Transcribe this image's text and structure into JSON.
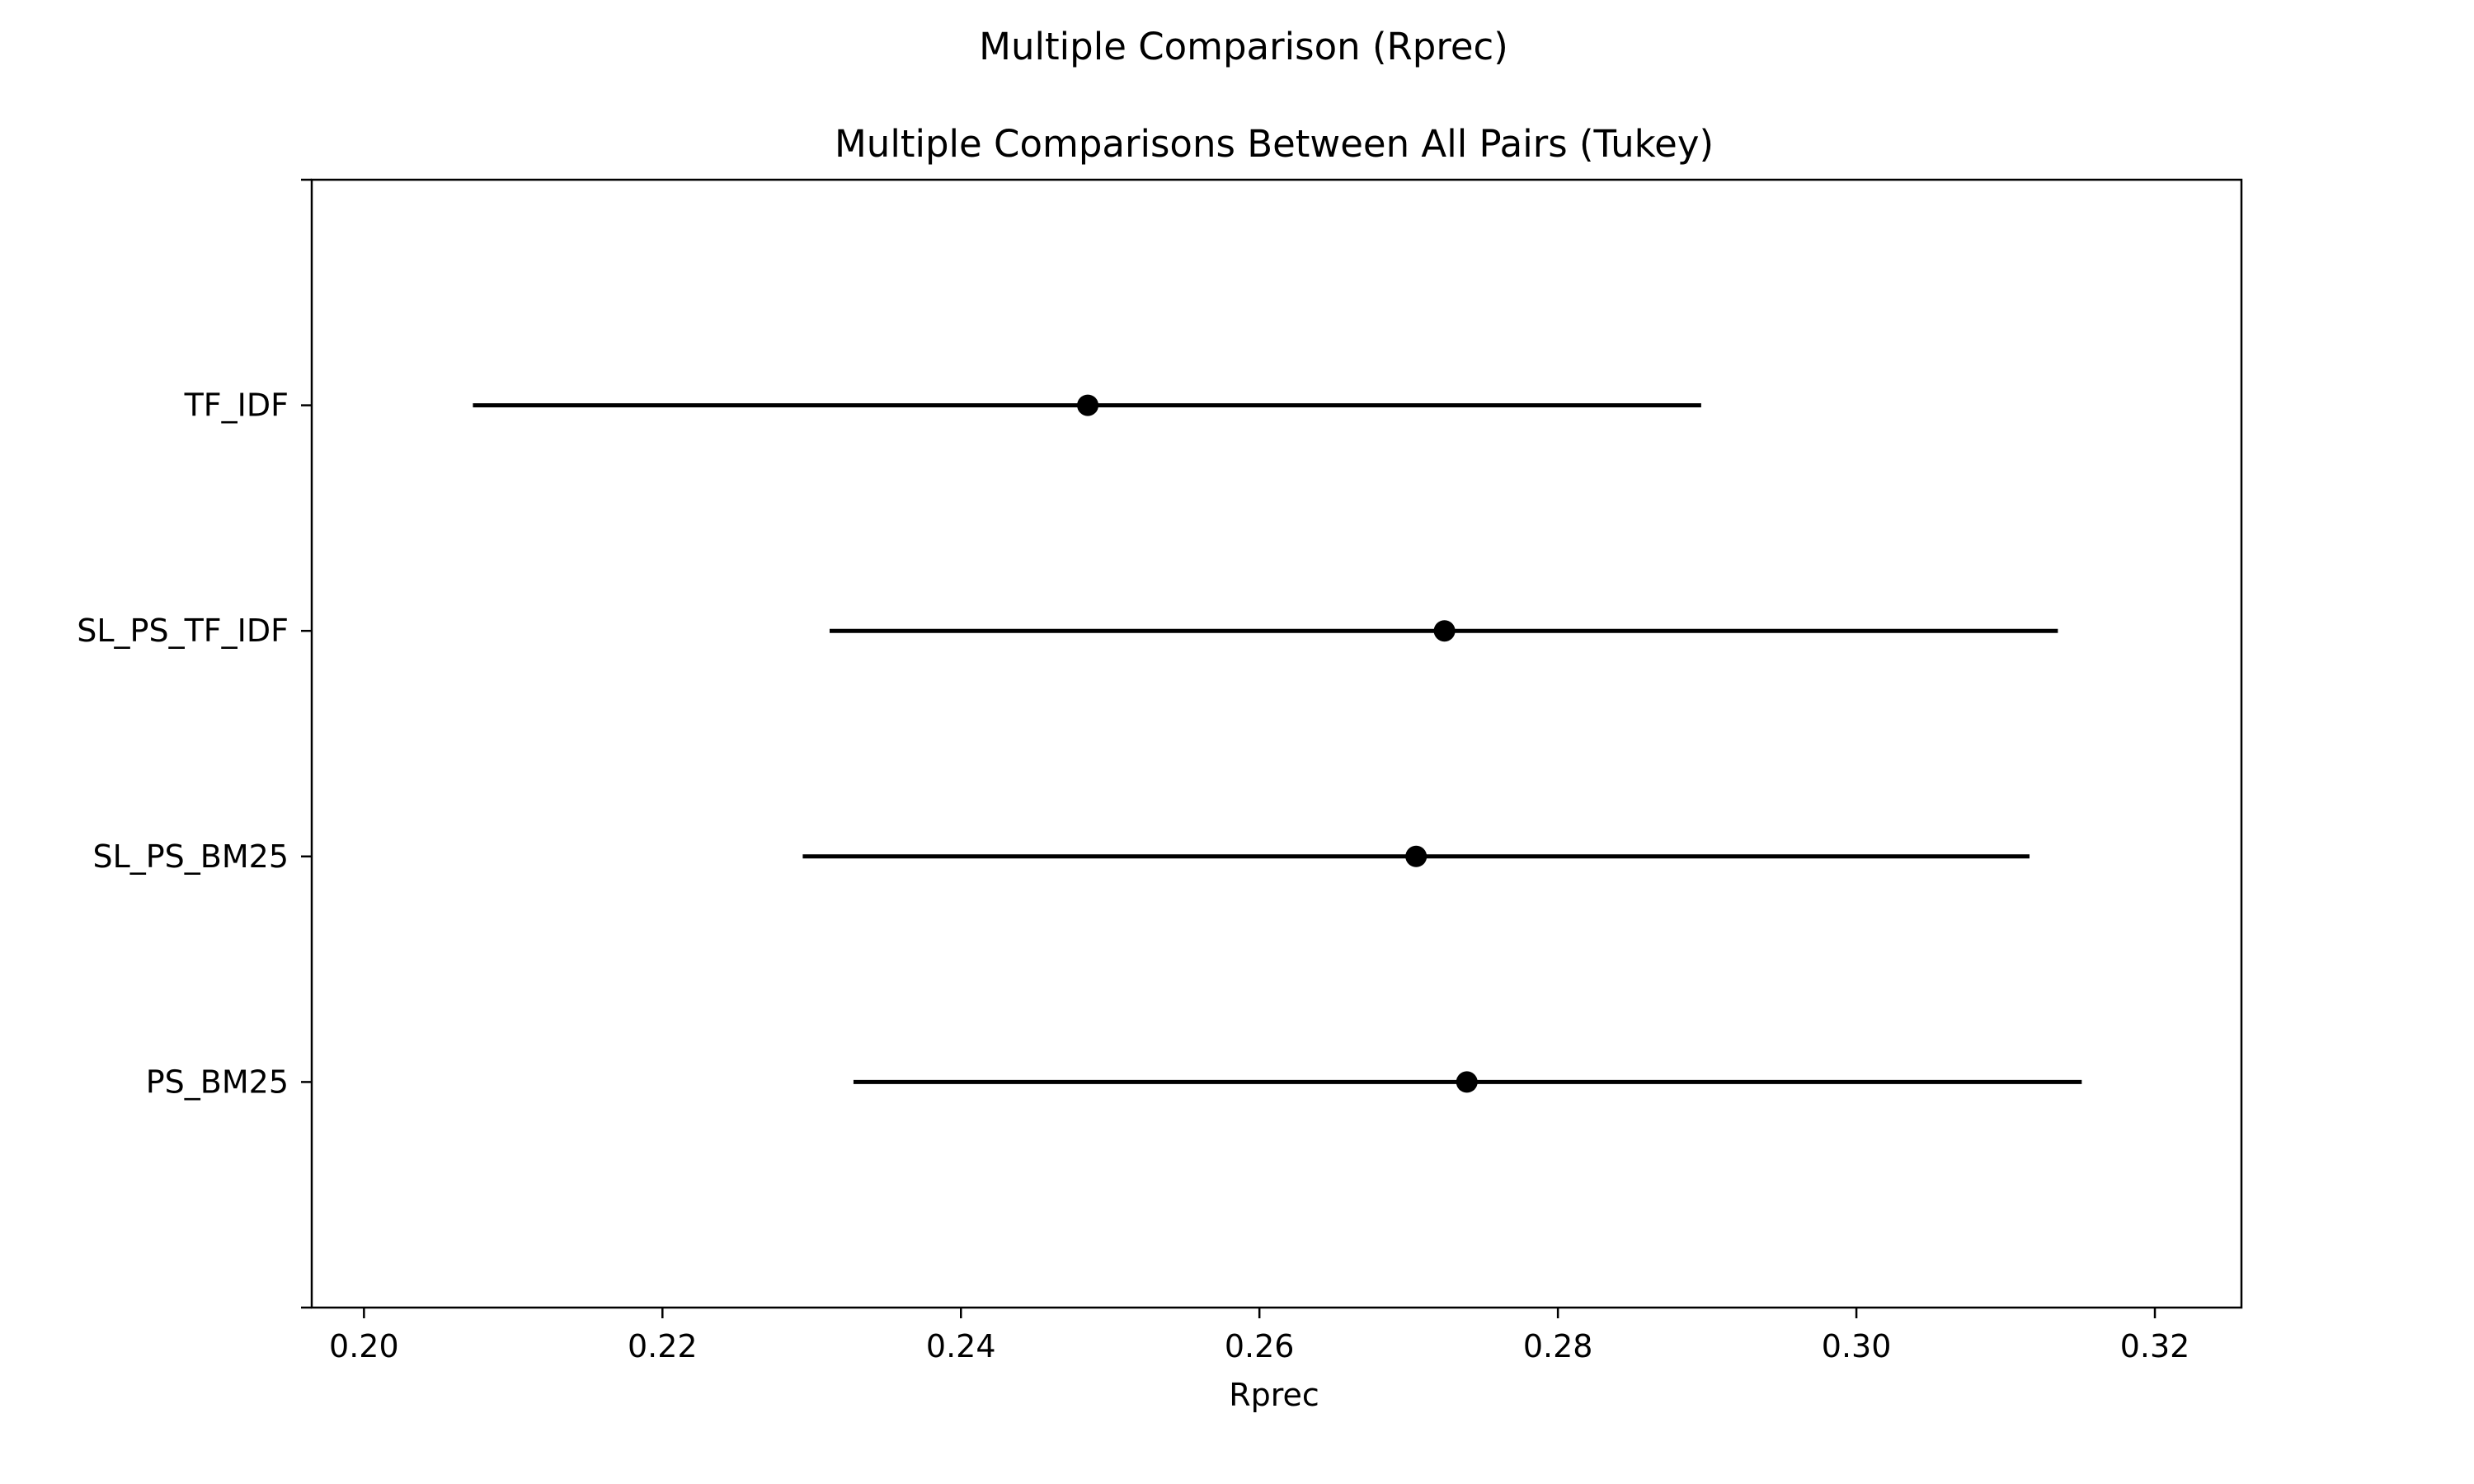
{
  "chart_data": {
    "type": "errorbar",
    "suptitle": "Multiple Comparison (Rprec)",
    "title": "Multiple Comparisons Between All Pairs (Tukey)",
    "xlabel": "Rprec",
    "ylabel": "",
    "xlim": [
      0.1965,
      0.3258
    ],
    "xticks": [
      0.2,
      0.22,
      0.24,
      0.26,
      0.28,
      0.3,
      0.32
    ],
    "xtick_labels": [
      "0.20",
      "0.22",
      "0.24",
      "0.26",
      "0.28",
      "0.30",
      "0.32"
    ],
    "grid": false,
    "legend": "none",
    "colors": {
      "line": "#000000",
      "marker": "#000000"
    },
    "groups": [
      {
        "label": "TF_IDF",
        "mean": 0.2485,
        "lower": 0.2073,
        "upper": 0.2896
      },
      {
        "label": "SL_PS_TF_IDF",
        "mean": 0.2724,
        "lower": 0.2312,
        "upper": 0.3135
      },
      {
        "label": "SL_PS_BM25",
        "mean": 0.2705,
        "lower": 0.2294,
        "upper": 0.3116
      },
      {
        "label": "PS_BM25",
        "mean": 0.2739,
        "lower": 0.2328,
        "upper": 0.3151
      }
    ]
  }
}
